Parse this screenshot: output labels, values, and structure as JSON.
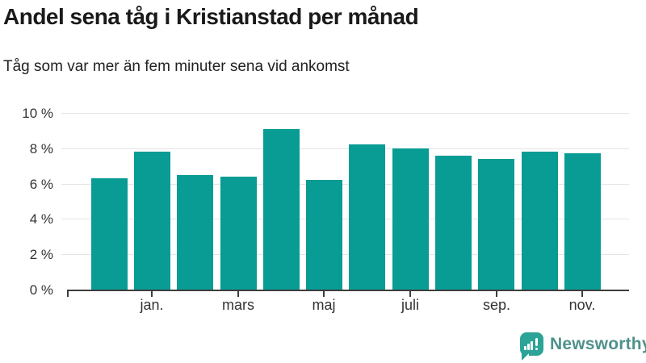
{
  "header": {
    "title": "Andel sena tåg i Kristianstad per månad",
    "subtitle": "Tåg som var mer än fem minuter sena vid ankomst"
  },
  "chart_data": {
    "type": "bar",
    "title": "Andel sena tåg i Kristianstad per månad",
    "subtitle": "Tåg som var mer än fem minuter sena vid ankomst",
    "categories": [
      "",
      "jan.",
      "",
      "mars",
      "",
      "maj",
      "",
      "juli",
      "",
      "sep.",
      "",
      "nov."
    ],
    "values": [
      6.3,
      7.8,
      6.5,
      6.4,
      9.1,
      6.2,
      8.2,
      8.0,
      7.6,
      7.4,
      7.8,
      7.7
    ],
    "unit": "%",
    "ylim": [
      0,
      10
    ],
    "yticks": [
      {
        "value": 0,
        "label": "0 %"
      },
      {
        "value": 2,
        "label": "2 %"
      },
      {
        "value": 4,
        "label": "4 %"
      },
      {
        "value": 6,
        "label": "6 %"
      },
      {
        "value": 8,
        "label": "8 %"
      },
      {
        "value": 10,
        "label": "10 %"
      }
    ],
    "grid": true,
    "legend": "none",
    "bar_color": "#089c94",
    "gridline_color": "#e4e4e4",
    "axis_color": "#3d3d3d",
    "tick_label_color": "#333333"
  },
  "footer": {
    "brand": "Newsworthy",
    "brand_color": "#4f918b",
    "icon": "newsworthy-speech-bubble-bar-chart-icon",
    "icon_color": "#2ba396"
  }
}
